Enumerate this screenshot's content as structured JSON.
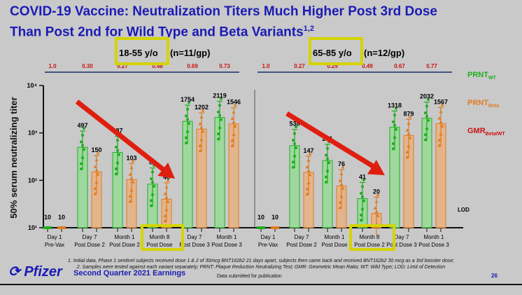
{
  "title_line1": "COVID-19 Vaccine: Neutralization Titers Much Higher Post 3rd Dose",
  "title_line2": "Than Post 2nd for Wild Type and Beta Variants",
  "title_sup": "1,2",
  "colors": {
    "wt": "#1fae1f",
    "beta": "#e07b1f",
    "gmr": "#cc1111",
    "title": "#1b1bb5",
    "arrow": "#e01e10",
    "highlight": "#d4d400"
  },
  "chart_data": {
    "type": "bar",
    "ylabel": "50% serum neutralizing titer",
    "yscale": "log",
    "ylim": [
      10,
      10000
    ],
    "yticks": [
      {
        "v": 10000,
        "label": "10⁴"
      },
      {
        "v": 1000,
        "label": "10³"
      },
      {
        "v": 100,
        "label": "10²"
      },
      {
        "v": 10,
        "label": "10¹"
      }
    ],
    "lod_label": "LOD",
    "legend": [
      {
        "main": "PRNT",
        "sub": "WT"
      },
      {
        "main": "PRNT",
        "sub": "Beta"
      },
      {
        "main": "GMR",
        "sub": "Beta/WT"
      }
    ],
    "legend_position": "right",
    "panels": [
      {
        "group": "18-55 y/o",
        "n": "(n=11/gp)",
        "categories": [
          [
            "Day 1",
            "Pre-Vax"
          ],
          [
            "Day 7",
            "Post Dose 2"
          ],
          [
            "Month 1",
            "Post Dose 2"
          ],
          [
            "Month 8",
            "Post Dose"
          ],
          [
            "Day 7",
            "Post Dose 3"
          ],
          [
            "Month 1",
            "Post Dose 3"
          ]
        ],
        "gmr": [
          "1.0",
          "0.30",
          "0.27",
          "0.48",
          "0.69",
          "0.73"
        ],
        "series": [
          {
            "name": "PRNT WT",
            "values": [
              10,
              497,
              387,
              83,
              1754,
              2119
            ]
          },
          {
            "name": "PRNT Beta",
            "values": [
              10,
              150,
              103,
              40,
              1202,
              1546
            ]
          }
        ]
      },
      {
        "group": "65-85 y/o",
        "n": "(n=12/gp)",
        "categories": [
          [
            "Day 1",
            "Pre-Vax"
          ],
          [
            "Day 7",
            "Post Dose 2"
          ],
          [
            "Month 1",
            "Post Dose"
          ],
          [
            "Month 8",
            "Post Dose 2"
          ],
          [
            "Day 7",
            "Post Dose 3"
          ],
          [
            "Month 1",
            "Post Dose 3"
          ]
        ],
        "gmr": [
          "1.0",
          "0.27",
          "0.29",
          "0.49",
          "0.67",
          "0.77"
        ],
        "series": [
          {
            "name": "PRNT WT",
            "values": [
              10,
              538,
              261,
              41,
              1318,
              2032
            ]
          },
          {
            "name": "PRNT Beta",
            "values": [
              10,
              147,
              76,
              20,
              879,
              1567
            ]
          }
        ]
      }
    ]
  },
  "footnote1": "1. Initial data, Phase 1 sentinel subjects received dose 1 & 2 of 30mcg BNT162b2 21 days apart, subjects then came back and received BNT162b2 30 mcg as a 3rd booster dose;",
  "footnote2": "2. Samples were tested against each variant separately; PRNT: Plaque Reduction Neutralizing Test; GMR: Geometric Mean Ratio; WT: Wild Type; LOD: Limit of Detection",
  "logo": "Pfizer",
  "earnings": "Second Quarter 2021 Earnings",
  "submitted": "Data submitted for publication",
  "page": "26"
}
